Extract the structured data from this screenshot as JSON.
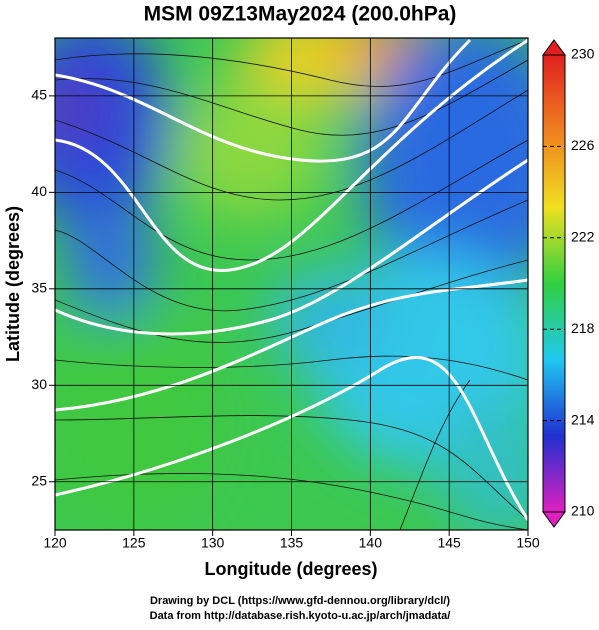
{
  "chart_data": {
    "type": "map",
    "title": "MSM 09Z13May2024 (200.0hPa)",
    "x_label": "Longitude (degrees)",
    "y_label": "Latitude  (degrees)",
    "xlim": [
      120,
      150
    ],
    "xticks": [
      120,
      125,
      130,
      135,
      140,
      145,
      150
    ],
    "ylim": [
      22.5,
      48
    ],
    "yticks": [
      25,
      30,
      35,
      40,
      45
    ],
    "grid": true,
    "colorbar": {
      "lim": [
        210,
        230
      ],
      "ticks": [
        210,
        214,
        218,
        222,
        226,
        230
      ],
      "colors": [
        "#e020c0",
        "#2030d0",
        "#20c8f0",
        "#30d040",
        "#f0e020",
        "#f08020",
        "#e02020"
      ]
    },
    "footer": [
      "Drawing by DCL (https://www.gfd-dennou.org/library/dcl/)",
      "Data from http://database.rish.kyoto-u.ac.jp/arch/jmadata/"
    ]
  }
}
